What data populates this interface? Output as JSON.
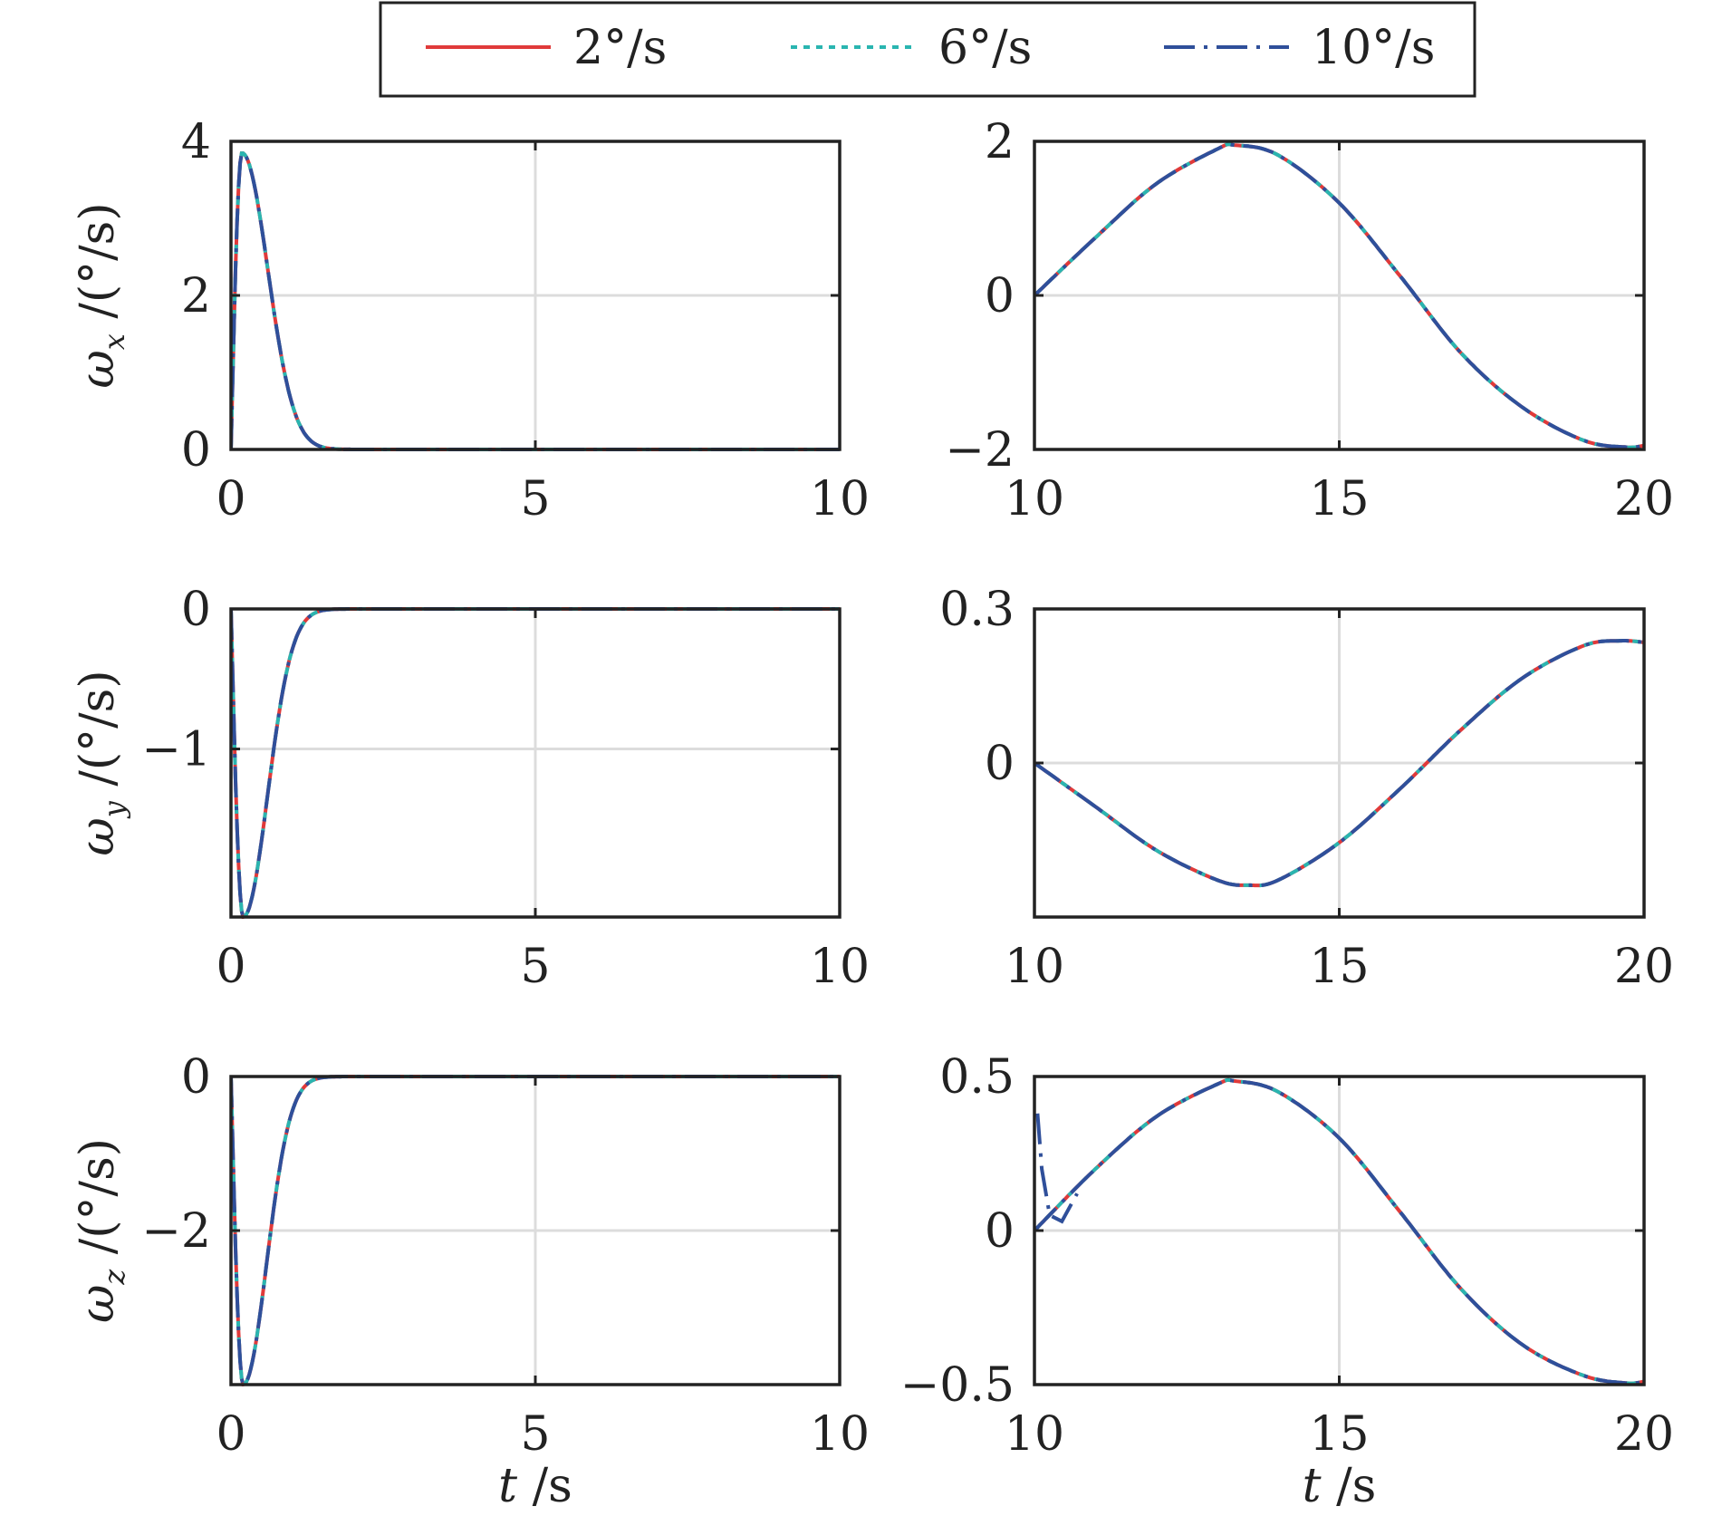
{
  "legend": {
    "entries": [
      {
        "label": "2°/s",
        "color": "#e03a3a",
        "dash": "solid"
      },
      {
        "label": "6°/s",
        "color": "#2ab5b0",
        "dash": "dotted"
      },
      {
        "label": "10°/s",
        "color": "#2f4f9a",
        "dash": "dashdot"
      }
    ]
  },
  "row_labels": [
    {
      "sym": "ω",
      "sub": "x",
      "unit": " /(°/s)"
    },
    {
      "sym": "ω",
      "sub": "y",
      "unit": " /(°/s)"
    },
    {
      "sym": "ω",
      "sub": "z",
      "unit": " /(°/s)"
    }
  ],
  "xlabel": {
    "sym": "t",
    "unit": " /s"
  },
  "chart_data": [
    {
      "type": "line",
      "xlim": [
        0,
        10
      ],
      "ylim": [
        0,
        4
      ],
      "xticks": [
        "0",
        "5",
        "10"
      ],
      "xtick_values": [
        0,
        5,
        10
      ],
      "yticks": [
        "0",
        "2",
        "4"
      ],
      "ytick_values": [
        0,
        2,
        4
      ],
      "grid": true,
      "series_template": "osc_positive",
      "peak": 3.85,
      "peak_t": 0.18,
      "decay": 2.3
    },
    {
      "type": "line",
      "xlim": [
        10,
        20
      ],
      "ylim": [
        -2,
        2
      ],
      "xticks": [
        "10",
        "15",
        "20"
      ],
      "xtick_values": [
        10,
        15,
        20
      ],
      "yticks": [
        "−2",
        "0",
        "2"
      ],
      "ytick_values": [
        -2,
        0,
        2
      ],
      "grid": true,
      "x": [
        10,
        11,
        12,
        13,
        13.3,
        14,
        15,
        16,
        17,
        18,
        19,
        19.7,
        20
      ],
      "y": [
        0,
        0.75,
        1.45,
        1.9,
        1.95,
        1.82,
        1.2,
        0.25,
        -0.75,
        -1.45,
        -1.88,
        -1.97,
        -1.95
      ]
    },
    {
      "type": "line",
      "xlim": [
        0,
        10
      ],
      "ylim": [
        -2.2,
        0
      ],
      "xticks": [
        "0",
        "5",
        "10"
      ],
      "xtick_values": [
        0,
        5,
        10
      ],
      "yticks": [
        "0",
        "−1"
      ],
      "ytick_values": [
        0,
        -1
      ],
      "grid": true,
      "series_template": "osc_negative",
      "peak": -2.2,
      "peak_t": 0.2,
      "decay": 2.6
    },
    {
      "type": "line",
      "xlim": [
        10,
        20
      ],
      "ylim": [
        -0.3,
        0.3
      ],
      "xticks": [
        "10",
        "15",
        "20"
      ],
      "xtick_values": [
        10,
        15,
        20
      ],
      "yticks": [
        "0",
        "0.3"
      ],
      "ytick_values": [
        0,
        0.3
      ],
      "grid": true,
      "x": [
        10,
        11,
        12,
        13,
        13.5,
        14,
        15,
        16,
        17,
        18,
        19,
        19.6,
        20
      ],
      "y": [
        0,
        -0.085,
        -0.17,
        -0.228,
        -0.238,
        -0.228,
        -0.155,
        -0.05,
        0.065,
        0.165,
        0.228,
        0.238,
        0.235
      ]
    },
    {
      "type": "line",
      "xlim": [
        0,
        10
      ],
      "ylim": [
        -4,
        0
      ],
      "xticks": [
        "0",
        "5",
        "10"
      ],
      "xtick_values": [
        0,
        5,
        10
      ],
      "yticks": [
        "0",
        "−2"
      ],
      "ytick_values": [
        0,
        -2
      ],
      "grid": true,
      "series_template": "osc_negative",
      "peak": -4.0,
      "peak_t": 0.2,
      "decay": 2.8
    },
    {
      "type": "line",
      "xlim": [
        10,
        20
      ],
      "ylim": [
        -0.5,
        0.5
      ],
      "xticks": [
        "10",
        "15",
        "20"
      ],
      "xtick_values": [
        10,
        15,
        20
      ],
      "yticks": [
        "−0.5",
        "0",
        "0.5"
      ],
      "ytick_values": [
        -0.5,
        0,
        0.5
      ],
      "grid": true,
      "x": [
        10,
        11,
        12,
        13,
        13.3,
        14,
        15,
        16,
        17,
        18,
        19,
        19.7,
        20
      ],
      "y": [
        0,
        0.2,
        0.37,
        0.475,
        0.485,
        0.45,
        0.3,
        0.06,
        -0.19,
        -0.37,
        -0.47,
        -0.495,
        -0.49
      ],
      "spike_10": {
        "x": [
          10.05,
          10.12,
          10.25,
          10.45,
          10.7
        ],
        "y": [
          0.38,
          0.2,
          0.05,
          0.03,
          0.12
        ]
      }
    }
  ]
}
